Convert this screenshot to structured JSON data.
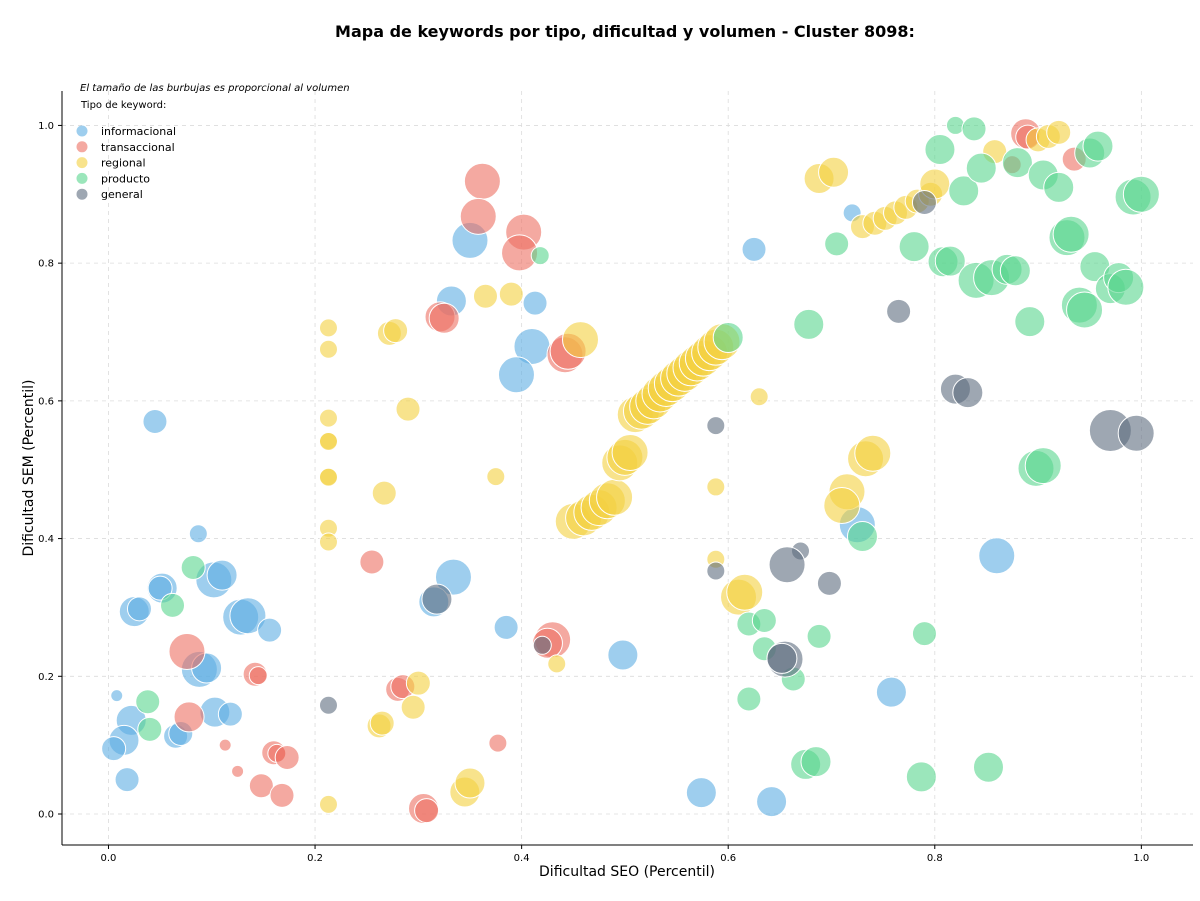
{
  "chart_data": {
    "type": "scatter",
    "title": "Mapa de keywords por tipo, dificultad y volumen - Cluster 8098:",
    "xlabel": "Dificultad SEO (Percentil)",
    "ylabel": "Dificultad SEM (Percentil)",
    "note": "El tamaño de las burbujas es proporcional al volumen",
    "xlim": [
      -0.045,
      1.05
    ],
    "ylim": [
      -0.045,
      1.05
    ],
    "xticks": [
      "0.0",
      "0.2",
      "0.4",
      "0.6",
      "0.8",
      "1.0"
    ],
    "yticks": [
      "0.0",
      "0.2",
      "0.4",
      "0.6",
      "0.8",
      "1.0"
    ],
    "grid": true,
    "legend": {
      "title": "Tipo de keyword:",
      "position": "top-left"
    },
    "size_encoding": "radius = volume (relative 0-10)",
    "series": [
      {
        "name": "informacional",
        "color": "#5dade2",
        "points": [
          [
            0.045,
            0.57,
            4
          ],
          [
            0.087,
            0.407,
            3
          ],
          [
            0.102,
            0.34,
            6
          ],
          [
            0.11,
            0.347,
            5
          ],
          [
            0.052,
            0.328,
            5
          ],
          [
            0.05,
            0.328,
            4
          ],
          [
            0.025,
            0.294,
            5
          ],
          [
            0.03,
            0.298,
            4
          ],
          [
            0.128,
            0.286,
            6
          ],
          [
            0.135,
            0.288,
            6
          ],
          [
            0.156,
            0.267,
            4
          ],
          [
            0.088,
            0.21,
            6
          ],
          [
            0.095,
            0.212,
            5
          ],
          [
            0.103,
            0.148,
            5
          ],
          [
            0.118,
            0.145,
            4
          ],
          [
            0.008,
            0.172,
            2
          ],
          [
            0.022,
            0.136,
            5
          ],
          [
            0.015,
            0.107,
            5
          ],
          [
            0.005,
            0.095,
            4
          ],
          [
            0.065,
            0.113,
            4
          ],
          [
            0.07,
            0.117,
            4
          ],
          [
            0.018,
            0.05,
            4
          ],
          [
            0.35,
            0.833,
            6
          ],
          [
            0.332,
            0.745,
            5
          ],
          [
            0.41,
            0.679,
            6
          ],
          [
            0.395,
            0.638,
            6
          ],
          [
            0.413,
            0.742,
            4
          ],
          [
            0.334,
            0.344,
            6
          ],
          [
            0.315,
            0.308,
            5
          ],
          [
            0.385,
            0.271,
            4
          ],
          [
            0.498,
            0.231,
            5
          ],
          [
            0.574,
            0.031,
            5
          ],
          [
            0.642,
            0.018,
            5
          ],
          [
            0.625,
            0.82,
            4
          ],
          [
            0.72,
            0.873,
            3
          ],
          [
            0.725,
            0.42,
            6
          ],
          [
            0.86,
            0.375,
            6
          ],
          [
            0.758,
            0.177,
            5
          ]
        ]
      },
      {
        "name": "transaccional",
        "color": "#ec7063",
        "points": [
          [
            0.362,
            0.919,
            6
          ],
          [
            0.358,
            0.868,
            6
          ],
          [
            0.402,
            0.845,
            6
          ],
          [
            0.398,
            0.815,
            6
          ],
          [
            0.321,
            0.722,
            5
          ],
          [
            0.325,
            0.72,
            5
          ],
          [
            0.442,
            0.667,
            6
          ],
          [
            0.445,
            0.672,
            6
          ],
          [
            0.255,
            0.366,
            4
          ],
          [
            0.43,
            0.253,
            6
          ],
          [
            0.425,
            0.248,
            5
          ],
          [
            0.076,
            0.236,
            6
          ],
          [
            0.142,
            0.203,
            4
          ],
          [
            0.145,
            0.201,
            3
          ],
          [
            0.28,
            0.181,
            4
          ],
          [
            0.285,
            0.185,
            4
          ],
          [
            0.078,
            0.141,
            5
          ],
          [
            0.113,
            0.1,
            2
          ],
          [
            0.125,
            0.062,
            2
          ],
          [
            0.148,
            0.041,
            4
          ],
          [
            0.16,
            0.089,
            4
          ],
          [
            0.163,
            0.088,
            3
          ],
          [
            0.173,
            0.082,
            4
          ],
          [
            0.168,
            0.027,
            4
          ],
          [
            0.305,
            0.008,
            5
          ],
          [
            0.308,
            0.005,
            4
          ],
          [
            0.377,
            0.103,
            3
          ],
          [
            0.888,
            0.988,
            5
          ],
          [
            0.89,
            0.983,
            4
          ],
          [
            0.875,
            0.943,
            3
          ],
          [
            0.935,
            0.951,
            4
          ]
        ]
      },
      {
        "name": "regional",
        "color": "#f4d03f",
        "points": [
          [
            0.213,
            0.706,
            3
          ],
          [
            0.213,
            0.675,
            3
          ],
          [
            0.213,
            0.575,
            3
          ],
          [
            0.213,
            0.542,
            3
          ],
          [
            0.213,
            0.541,
            3
          ],
          [
            0.213,
            0.49,
            3
          ],
          [
            0.213,
            0.489,
            3
          ],
          [
            0.213,
            0.415,
            3
          ],
          [
            0.213,
            0.395,
            3
          ],
          [
            0.213,
            0.014,
            3
          ],
          [
            0.272,
            0.698,
            4
          ],
          [
            0.278,
            0.702,
            4
          ],
          [
            0.29,
            0.588,
            4
          ],
          [
            0.267,
            0.466,
            4
          ],
          [
            0.365,
            0.752,
            4
          ],
          [
            0.39,
            0.755,
            4
          ],
          [
            0.457,
            0.689,
            6
          ],
          [
            0.375,
            0.49,
            3
          ],
          [
            0.3,
            0.19,
            4
          ],
          [
            0.295,
            0.155,
            4
          ],
          [
            0.262,
            0.128,
            4
          ],
          [
            0.265,
            0.132,
            4
          ],
          [
            0.345,
            0.032,
            5
          ],
          [
            0.35,
            0.045,
            5
          ],
          [
            0.434,
            0.218,
            3
          ],
          [
            0.45,
            0.425,
            6
          ],
          [
            0.46,
            0.43,
            6
          ],
          [
            0.468,
            0.438,
            6
          ],
          [
            0.475,
            0.445,
            6
          ],
          [
            0.483,
            0.455,
            6
          ],
          [
            0.49,
            0.46,
            6
          ],
          [
            0.495,
            0.51,
            6
          ],
          [
            0.5,
            0.518,
            6
          ],
          [
            0.505,
            0.525,
            6
          ],
          [
            0.51,
            0.58,
            6
          ],
          [
            0.516,
            0.585,
            6
          ],
          [
            0.522,
            0.592,
            6
          ],
          [
            0.528,
            0.6,
            6
          ],
          [
            0.534,
            0.61,
            6
          ],
          [
            0.54,
            0.618,
            6
          ],
          [
            0.546,
            0.625,
            6
          ],
          [
            0.552,
            0.633,
            6
          ],
          [
            0.558,
            0.64,
            6
          ],
          [
            0.564,
            0.648,
            6
          ],
          [
            0.57,
            0.655,
            6
          ],
          [
            0.576,
            0.662,
            6
          ],
          [
            0.582,
            0.67,
            6
          ],
          [
            0.588,
            0.678,
            6
          ],
          [
            0.594,
            0.686,
            6
          ],
          [
            0.588,
            0.475,
            3
          ],
          [
            0.588,
            0.37,
            3
          ],
          [
            0.63,
            0.606,
            3
          ],
          [
            0.61,
            0.315,
            6
          ],
          [
            0.616,
            0.322,
            6
          ],
          [
            0.688,
            0.923,
            5
          ],
          [
            0.702,
            0.932,
            5
          ],
          [
            0.73,
            0.853,
            4
          ],
          [
            0.742,
            0.858,
            4
          ],
          [
            0.752,
            0.865,
            4
          ],
          [
            0.762,
            0.873,
            4
          ],
          [
            0.772,
            0.881,
            4
          ],
          [
            0.783,
            0.89,
            4
          ],
          [
            0.796,
            0.9,
            4
          ],
          [
            0.8,
            0.915,
            5
          ],
          [
            0.858,
            0.962,
            4
          ],
          [
            0.9,
            0.979,
            4
          ],
          [
            0.91,
            0.984,
            4
          ],
          [
            0.92,
            0.99,
            4
          ],
          [
            0.715,
            0.468,
            6
          ],
          [
            0.71,
            0.448,
            6
          ],
          [
            0.733,
            0.516,
            6
          ],
          [
            0.74,
            0.524,
            6
          ]
        ]
      },
      {
        "name": "producto",
        "color": "#58d68d",
        "points": [
          [
            0.418,
            0.811,
            3
          ],
          [
            0.6,
            0.692,
            5
          ],
          [
            0.678,
            0.711,
            5
          ],
          [
            0.705,
            0.828,
            4
          ],
          [
            0.78,
            0.824,
            5
          ],
          [
            0.808,
            0.802,
            5
          ],
          [
            0.815,
            0.803,
            5
          ],
          [
            0.82,
            1.0,
            3
          ],
          [
            0.838,
            0.995,
            4
          ],
          [
            0.805,
            0.965,
            5
          ],
          [
            0.828,
            0.905,
            5
          ],
          [
            0.845,
            0.938,
            5
          ],
          [
            0.88,
            0.946,
            5
          ],
          [
            0.905,
            0.928,
            5
          ],
          [
            0.92,
            0.91,
            5
          ],
          [
            0.928,
            0.837,
            6
          ],
          [
            0.932,
            0.842,
            6
          ],
          [
            0.95,
            0.96,
            5
          ],
          [
            0.958,
            0.97,
            5
          ],
          [
            0.992,
            0.896,
            6
          ],
          [
            1.0,
            0.9,
            6
          ],
          [
            0.84,
            0.775,
            6
          ],
          [
            0.855,
            0.779,
            6
          ],
          [
            0.87,
            0.791,
            5
          ],
          [
            0.878,
            0.789,
            5
          ],
          [
            0.892,
            0.715,
            5
          ],
          [
            0.94,
            0.739,
            6
          ],
          [
            0.945,
            0.732,
            6
          ],
          [
            0.955,
            0.795,
            5
          ],
          [
            0.97,
            0.763,
            5
          ],
          [
            0.978,
            0.779,
            5
          ],
          [
            0.985,
            0.765,
            6
          ],
          [
            0.898,
            0.502,
            6
          ],
          [
            0.905,
            0.506,
            6
          ],
          [
            0.73,
            0.403,
            5
          ],
          [
            0.62,
            0.276,
            4
          ],
          [
            0.635,
            0.281,
            4
          ],
          [
            0.635,
            0.24,
            4
          ],
          [
            0.688,
            0.258,
            4
          ],
          [
            0.663,
            0.196,
            4
          ],
          [
            0.62,
            0.167,
            4
          ],
          [
            0.675,
            0.072,
            5
          ],
          [
            0.685,
            0.076,
            5
          ],
          [
            0.787,
            0.054,
            5
          ],
          [
            0.852,
            0.068,
            5
          ],
          [
            0.79,
            0.262,
            4
          ],
          [
            0.082,
            0.358,
            4
          ],
          [
            0.062,
            0.303,
            4
          ],
          [
            0.038,
            0.163,
            4
          ],
          [
            0.04,
            0.123,
            4
          ]
        ]
      },
      {
        "name": "general",
        "color": "#5d6d7e",
        "points": [
          [
            0.213,
            0.158,
            3
          ],
          [
            0.318,
            0.312,
            5
          ],
          [
            0.42,
            0.245,
            3
          ],
          [
            0.588,
            0.564,
            3
          ],
          [
            0.588,
            0.353,
            3
          ],
          [
            0.67,
            0.382,
            3
          ],
          [
            0.657,
            0.362,
            6
          ],
          [
            0.698,
            0.335,
            4
          ],
          [
            0.655,
            0.225,
            6
          ],
          [
            0.652,
            0.226,
            5
          ],
          [
            0.765,
            0.73,
            4
          ],
          [
            0.79,
            0.888,
            4
          ],
          [
            0.82,
            0.617,
            5
          ],
          [
            0.832,
            0.612,
            5
          ],
          [
            0.97,
            0.557,
            7
          ],
          [
            0.995,
            0.553,
            6
          ]
        ]
      }
    ]
  }
}
